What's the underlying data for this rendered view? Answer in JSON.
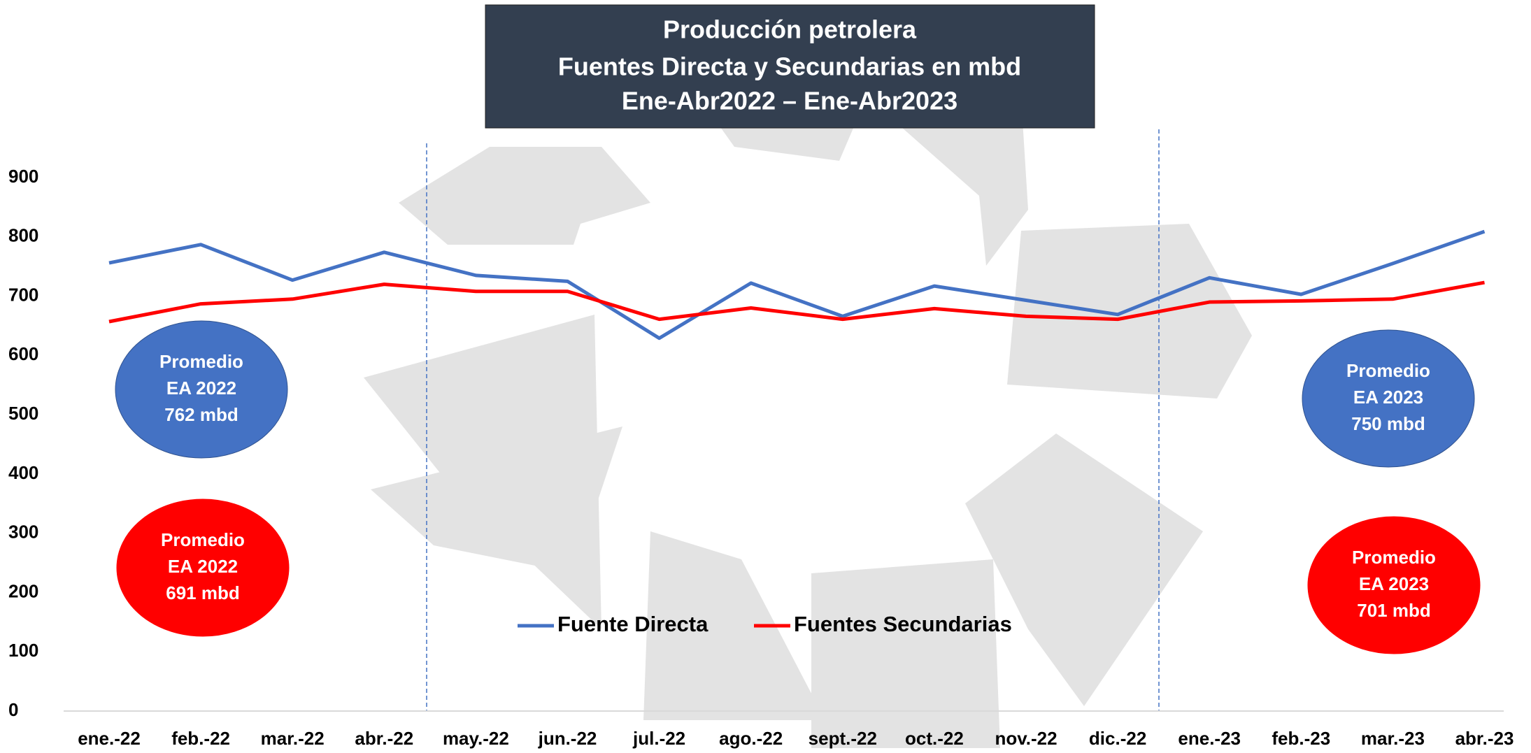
{
  "chart_data": {
    "type": "line",
    "title": [
      "Producción petrolera",
      "Fuentes Directa y Secundarias en mbd",
      "Ene-Abr2022 – Ene-Abr2023"
    ],
    "categories": [
      "ene.-22",
      "feb.-22",
      "mar.-22",
      "abr.-22",
      "may.-22",
      "jun.-22",
      "jul.-22",
      "ago.-22",
      "sept.-22",
      "oct.-22",
      "nov.-22",
      "dic.-22",
      "ene.-23",
      "feb.-23",
      "mar.-23",
      "abr.-23"
    ],
    "series": [
      {
        "name": "Fuente Directa",
        "color": "#4472c4",
        "values": [
          756,
          787,
          727,
          774,
          735,
          725,
          629,
          722,
          666,
          717,
          693,
          669,
          731,
          703,
          755,
          809
        ]
      },
      {
        "name": "Fuentes Secundarias",
        "color": "#ff0000",
        "values": [
          657,
          687,
          695,
          720,
          708,
          708,
          661,
          680,
          661,
          679,
          666,
          661,
          690,
          692,
          695,
          723
        ]
      }
    ],
    "ylim": [
      0,
      900
    ],
    "yticks": [
      0,
      100,
      200,
      300,
      400,
      500,
      600,
      700,
      800,
      900
    ],
    "annotations": [
      {
        "lines": [
          "Promedio",
          "EA 2022",
          "762 mbd"
        ],
        "color": "#4472c4"
      },
      {
        "lines": [
          "Promedio",
          "EA 2022",
          "691 mbd"
        ],
        "color": "#ff0000"
      },
      {
        "lines": [
          "Promedio",
          "EA 2023",
          "750 mbd"
        ],
        "color": "#4472c4"
      },
      {
        "lines": [
          "Promedio",
          "EA 2023",
          "701 mbd"
        ],
        "color": "#ff0000"
      }
    ]
  }
}
